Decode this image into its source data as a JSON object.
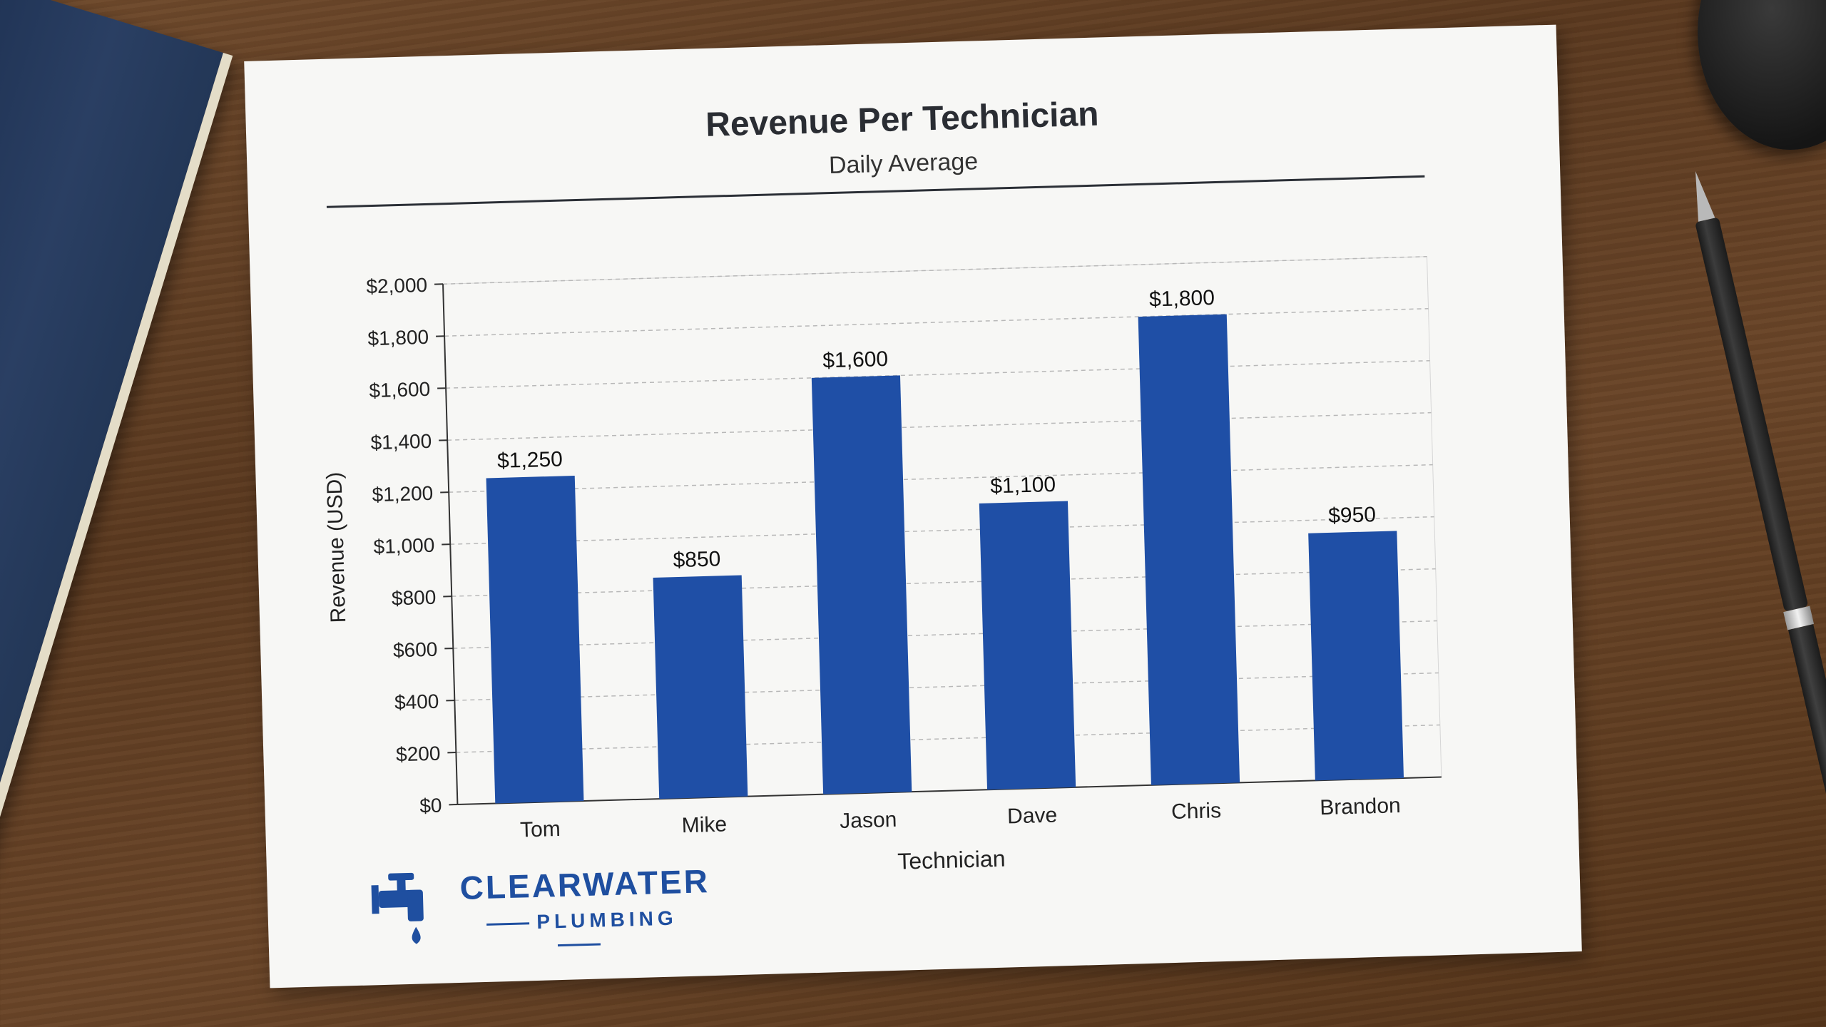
{
  "chart_data": {
    "type": "bar",
    "title": "Revenue Per Technician",
    "subtitle": "Daily Average",
    "xlabel": "Technician",
    "ylabel": "Revenue (USD)",
    "categories": [
      "Tom",
      "Mike",
      "Jason",
      "Dave",
      "Chris",
      "Brandon"
    ],
    "values": [
      1250,
      850,
      1600,
      1100,
      1800,
      950
    ],
    "data_labels": [
      "$1,250",
      "$850",
      "$1,600",
      "$1,100",
      "$1,800",
      "$950"
    ],
    "ylim": [
      0,
      2000
    ],
    "yticks": [
      0,
      200,
      400,
      600,
      800,
      1000,
      1200,
      1400,
      1600,
      1800,
      2000
    ],
    "ytick_labels": [
      "$0",
      "$200",
      "$400",
      "$600",
      "$800",
      "$1,000",
      "$1,200",
      "$1,400",
      "$1,600",
      "$1,800",
      "$2,000"
    ],
    "bar_color": "#1f4fa6",
    "grid": "horizontal dashed",
    "legend": "none"
  },
  "logo": {
    "name": "CLEARWATER",
    "sub": "PLUMBING",
    "color": "#1f4fa0"
  }
}
